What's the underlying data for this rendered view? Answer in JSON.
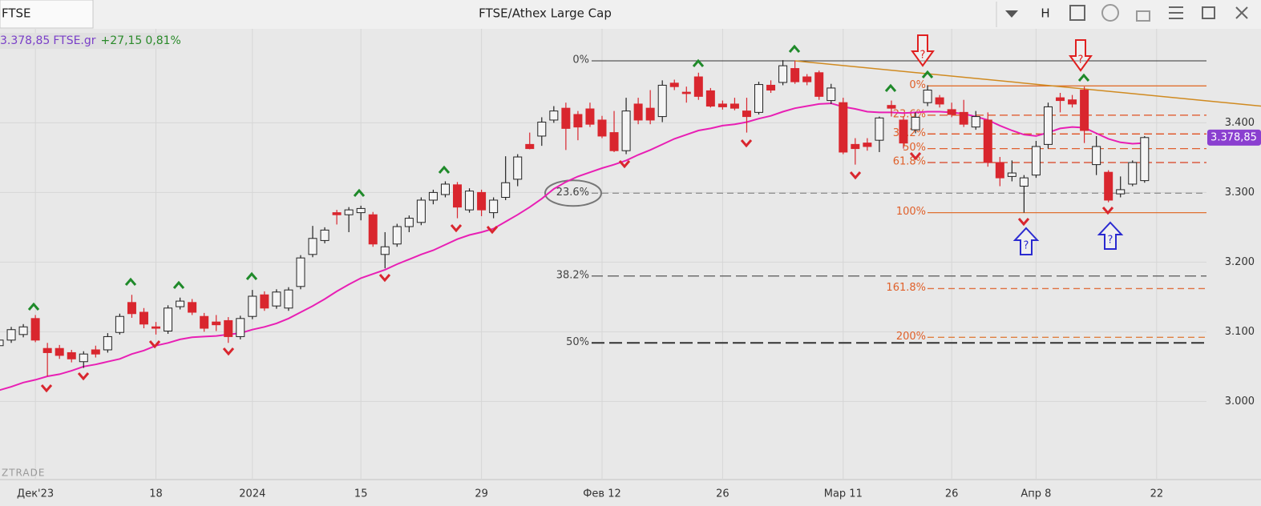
{
  "header": {
    "symbol": "FTSE",
    "title": "FTSE/Athex Large Cap",
    "h_button": "H"
  },
  "quote": {
    "price": "3.378,85",
    "symbol": "FTSE.gr",
    "change": "+27,15",
    "change_pct": "0,81%"
  },
  "watermark": "ZTRADE",
  "question_mark": "?",
  "chart_data": {
    "type": "candlestick",
    "categories": [
      null,
      null,
      null,
      "Дек'23",
      null,
      null,
      null,
      null,
      null,
      null,
      null,
      null,
      null,
      "18",
      null,
      null,
      null,
      null,
      null,
      null,
      null,
      "2024",
      null,
      null,
      null,
      null,
      null,
      null,
      null,
      null,
      "15",
      null,
      null,
      null,
      null,
      null,
      null,
      null,
      null,
      null,
      "29",
      null,
      null,
      null,
      null,
      null,
      null,
      null,
      null,
      null,
      "Фев 12",
      null,
      null,
      null,
      null,
      null,
      null,
      null,
      null,
      null,
      "26",
      null,
      null,
      null,
      null,
      null,
      null,
      null,
      null,
      null,
      "Мар 11",
      null,
      null,
      null,
      null,
      null,
      null,
      null,
      null,
      "26",
      null,
      null,
      null,
      null,
      null,
      null,
      "Апр 8",
      null,
      null,
      null,
      null,
      null,
      null,
      null,
      null,
      null,
      "22"
    ],
    "open": [
      3080,
      3088,
      3096,
      3119,
      3076,
      3076,
      3070,
      3057,
      3074,
      3074,
      3099,
      3142,
      3128,
      3107,
      3101,
      3136,
      3142,
      3122,
      3114,
      3116,
      3093,
      3122,
      3153,
      3137,
      3134,
      3165,
      3211,
      3231,
      3271,
      3268,
      3271,
      3268,
      3211,
      3226,
      3251,
      3257,
      3289,
      3297,
      3311,
      3275,
      3300,
      3271,
      3293,
      3319,
      3369,
      3381,
      3404,
      3421,
      3412,
      3420,
      3404,
      3386,
      3360,
      3427,
      3421,
      3409,
      3457,
      3444,
      3466,
      3446,
      3427,
      3427,
      3417,
      3415,
      3454,
      3458,
      3478,
      3466,
      3472,
      3432,
      3429,
      3369,
      3371,
      3375,
      3425,
      3404,
      3390,
      3429,
      3436,
      3419,
      3415,
      3394,
      3404,
      3343,
      3323,
      3309,
      3325,
      3369,
      3436,
      3433,
      3447,
      3340,
      3329,
      3298,
      3312,
      3317,
      null
    ],
    "high": [
      3092,
      3107,
      3111,
      3124,
      3084,
      3081,
      3074,
      3072,
      3080,
      3098,
      3126,
      3153,
      3134,
      3114,
      3138,
      3149,
      3147,
      3127,
      3124,
      3121,
      3123,
      3160,
      3158,
      3161,
      3164,
      3210,
      3252,
      3250,
      3275,
      3279,
      3281,
      3272,
      3243,
      3255,
      3267,
      3293,
      3304,
      3316,
      3315,
      3306,
      3304,
      3293,
      3352,
      3355,
      3386,
      3408,
      3424,
      3429,
      3417,
      3429,
      3410,
      3417,
      3436,
      3436,
      3447,
      3461,
      3462,
      3452,
      3472,
      3450,
      3432,
      3436,
      3436,
      3459,
      3461,
      3490,
      3489,
      3470,
      3475,
      3456,
      3436,
      3378,
      3378,
      3409,
      3432,
      3409,
      3415,
      3454,
      3440,
      3429,
      3433,
      3417,
      3415,
      3351,
      3346,
      3325,
      3374,
      3429,
      3443,
      3440,
      3452,
      3381,
      3332,
      3323,
      3346,
      3381,
      null
    ],
    "low": [
      3076,
      3084,
      3092,
      3085,
      3036,
      3061,
      3056,
      3048,
      3063,
      3070,
      3096,
      3120,
      3105,
      3096,
      3097,
      3132,
      3124,
      3100,
      3101,
      3084,
      3089,
      3118,
      3130,
      3133,
      3130,
      3161,
      3207,
      3227,
      3254,
      3243,
      3260,
      3222,
      3191,
      3222,
      3243,
      3253,
      3283,
      3293,
      3263,
      3271,
      3266,
      3263,
      3289,
      3309,
      3362,
      3367,
      3400,
      3361,
      3375,
      3394,
      3378,
      3358,
      3355,
      3398,
      3398,
      3401,
      3447,
      3429,
      3433,
      3422,
      3419,
      3418,
      3386,
      3412,
      3443,
      3454,
      3456,
      3454,
      3433,
      3427,
      3355,
      3340,
      3360,
      3358,
      3409,
      3363,
      3385,
      3424,
      3422,
      3408,
      3394,
      3390,
      3337,
      3309,
      3316,
      3271,
      3321,
      3363,
      3415,
      3422,
      3371,
      3325,
      3286,
      3293,
      3309,
      3314,
      null
    ],
    "close": [
      3088,
      3103,
      3107,
      3088,
      3070,
      3066,
      3061,
      3068,
      3068,
      3093,
      3122,
      3126,
      3111,
      3105,
      3134,
      3144,
      3128,
      3105,
      3110,
      3093,
      3119,
      3151,
      3134,
      3157,
      3160,
      3206,
      3234,
      3246,
      3268,
      3275,
      3277,
      3226,
      3222,
      3251,
      3263,
      3289,
      3300,
      3312,
      3279,
      3302,
      3275,
      3289,
      3314,
      3351,
      3363,
      3401,
      3417,
      3392,
      3394,
      3398,
      3381,
      3360,
      3417,
      3404,
      3404,
      3454,
      3452,
      3442,
      3438,
      3424,
      3423,
      3421,
      3409,
      3455,
      3447,
      3482,
      3459,
      3459,
      3438,
      3450,
      3358,
      3363,
      3366,
      3407,
      3421,
      3371,
      3408,
      3447,
      3427,
      3412,
      3398,
      3409,
      3343,
      3321,
      3328,
      3321,
      3366,
      3423,
      3432,
      3427,
      3389,
      3366,
      3289,
      3304,
      3343,
      3378.85,
      null
    ],
    "up_color": "#f5f5f5",
    "down_color": "#d9262e",
    "ma": {
      "color": "#e81fb4",
      "values": [
        3016,
        3021,
        3027,
        3031,
        3036,
        3039,
        3044,
        3050,
        3053,
        3057,
        3061,
        3068,
        3073,
        3080,
        3084,
        3089,
        3092,
        3093,
        3094,
        3096,
        3098,
        3103,
        3107,
        3112,
        3119,
        3128,
        3137,
        3147,
        3158,
        3168,
        3177,
        3183,
        3189,
        3197,
        3204,
        3211,
        3217,
        3225,
        3233,
        3239,
        3243,
        3248,
        3258,
        3268,
        3279,
        3291,
        3305,
        3315,
        3323,
        3329,
        3335,
        3340,
        3346,
        3354,
        3361,
        3369,
        3377,
        3383,
        3389,
        3392,
        3396,
        3398,
        3401,
        3406,
        3410,
        3416,
        3421,
        3424,
        3427,
        3428,
        3423,
        3420,
        3416,
        3415,
        3415,
        3414,
        3415,
        3416,
        3416,
        3415,
        3413,
        3409,
        3404,
        3396,
        3389,
        3383,
        3381,
        3386,
        3392,
        3394,
        3393,
        3385,
        3377,
        3372,
        3370,
        3371,
        null
      ]
    },
    "last_price": {
      "value": 3378.85,
      "label": "3.378,85"
    },
    "ylim": [
      2890,
      3535
    ],
    "yticks": [
      {
        "value": 3000,
        "label": "3.000"
      },
      {
        "value": 3100,
        "label": "3.100"
      },
      {
        "value": 3200,
        "label": "3.200"
      },
      {
        "value": 3300,
        "label": "3.300"
      },
      {
        "value": 3400,
        "label": "3.400"
      }
    ],
    "grid": true,
    "fib_gray": [
      {
        "label": "0%",
        "value": 3489
      },
      {
        "label": "23.6%",
        "value": 3299
      },
      {
        "label": "38.2%",
        "value": 3180
      },
      {
        "label": "50%",
        "value": 3084
      }
    ],
    "fib_orange": [
      {
        "label": "0%",
        "value": 3453
      },
      {
        "label": "23.6%",
        "value": 3411
      },
      {
        "label": "38.2%",
        "value": 3384
      },
      {
        "label": "50%",
        "value": 3363
      },
      {
        "label": "61.8%",
        "value": 3343
      },
      {
        "label": "100%",
        "value": 3271
      },
      {
        "label": "161.8%",
        "value": 3162
      },
      {
        "label": "200%",
        "value": 3092
      }
    ],
    "trendline": {
      "from": 3489,
      "to": 3424
    }
  }
}
